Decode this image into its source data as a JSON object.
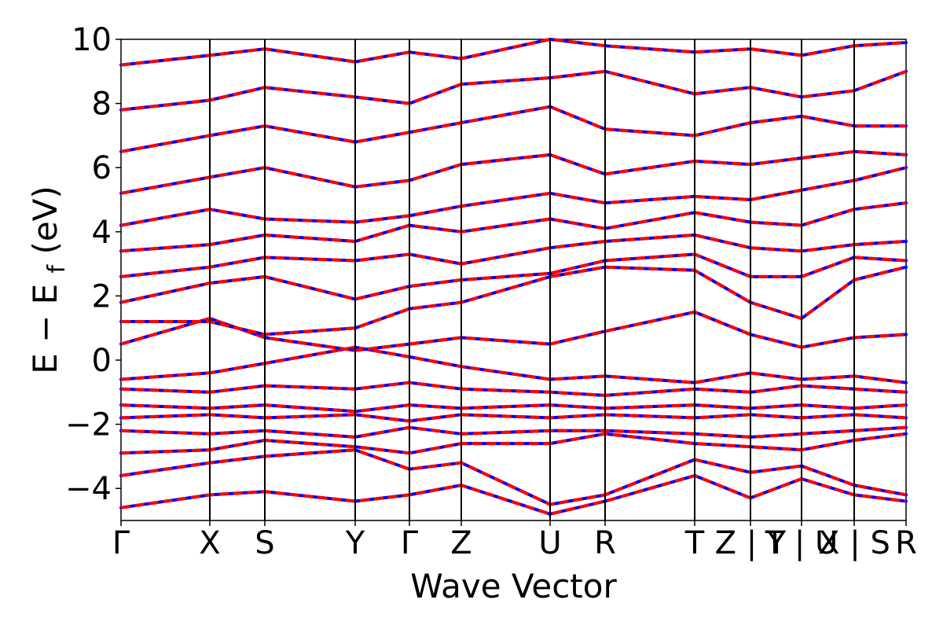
{
  "chart_data": {
    "type": "line",
    "xlabel": "Wave Vector",
    "ylabel_main": "E − E",
    "ylabel_sub": "f",
    "ylabel_suffix": " (eV)",
    "ylim": [
      -5,
      10
    ],
    "yticks": [
      -4,
      -2,
      0,
      2,
      4,
      6,
      8,
      10
    ],
    "ytick_labels": [
      "−4",
      "−2",
      "0",
      "2",
      "4",
      "6",
      "8",
      "10"
    ],
    "kpath": {
      "segments": [
        [
          "Γ",
          "X"
        ],
        [
          "X",
          "S"
        ],
        [
          "S",
          "Y"
        ],
        [
          "Y",
          "Γ"
        ],
        [
          "Γ",
          "Z"
        ],
        [
          "Z",
          "U"
        ],
        [
          "U",
          "R"
        ],
        [
          "R",
          "T"
        ],
        [
          "T",
          "Z"
        ],
        [
          "Y",
          "T"
        ],
        [
          "U",
          "X"
        ],
        [
          "S",
          "R"
        ]
      ],
      "labels": [
        "Γ",
        "X",
        "S",
        "Y",
        "Γ",
        "Z",
        "U",
        "R",
        "T",
        "Z | Y",
        "T | U",
        "X | S",
        "R"
      ]
    },
    "series": [
      {
        "color": "#0000ff",
        "style": "solid",
        "bands": [
          {
            "x": [
              0,
              1,
              2,
              3,
              4,
              5,
              6,
              7,
              8,
              9,
              10,
              11,
              12
            ],
            "y": [
              -4.6,
              -4.2,
              -4.1,
              -4.4,
              -4.2,
              -3.9,
              -4.8,
              -4.4,
              -3.6,
              -4.3,
              -3.7,
              -4.2,
              -4.4
            ]
          },
          {
            "x": [
              0,
              1,
              2,
              3,
              4,
              5,
              6,
              7,
              8,
              9,
              10,
              11,
              12
            ],
            "y": [
              -3.6,
              -3.2,
              -3.0,
              -2.8,
              -3.4,
              -3.2,
              -4.5,
              -4.2,
              -3.1,
              -3.5,
              -3.3,
              -3.9,
              -4.2
            ]
          },
          {
            "x": [
              0,
              1,
              2,
              3,
              4,
              5,
              6,
              7,
              8,
              9,
              10,
              11,
              12
            ],
            "y": [
              -2.9,
              -2.8,
              -2.5,
              -2.7,
              -2.9,
              -2.6,
              -2.6,
              -2.3,
              -2.6,
              -2.7,
              -2.8,
              -2.5,
              -2.3
            ]
          },
          {
            "x": [
              0,
              1,
              2,
              3,
              4,
              5,
              6,
              7,
              8,
              9,
              10,
              11,
              12
            ],
            "y": [
              -2.2,
              -2.3,
              -2.2,
              -2.4,
              -2.1,
              -2.3,
              -2.2,
              -2.2,
              -2.3,
              -2.4,
              -2.3,
              -2.2,
              -2.1
            ]
          },
          {
            "x": [
              0,
              1,
              2,
              3,
              4,
              5,
              6,
              7,
              8,
              9,
              10,
              11,
              12
            ],
            "y": [
              -1.8,
              -1.7,
              -1.8,
              -1.7,
              -1.9,
              -1.7,
              -1.8,
              -1.7,
              -1.8,
              -1.7,
              -1.8,
              -1.7,
              -1.8
            ]
          },
          {
            "x": [
              0,
              1,
              2,
              3,
              4,
              5,
              6,
              7,
              8,
              9,
              10,
              11,
              12
            ],
            "y": [
              -1.4,
              -1.5,
              -1.4,
              -1.6,
              -1.4,
              -1.5,
              -1.4,
              -1.5,
              -1.4,
              -1.5,
              -1.4,
              -1.5,
              -1.4
            ]
          },
          {
            "x": [
              0,
              1,
              2,
              3,
              4,
              5,
              6,
              7,
              8,
              9,
              10,
              11,
              12
            ],
            "y": [
              -0.9,
              -1.0,
              -0.8,
              -0.9,
              -0.7,
              -0.9,
              -1.0,
              -1.1,
              -0.9,
              -1.0,
              -0.8,
              -0.9,
              -1.0
            ]
          },
          {
            "x": [
              0,
              1,
              2,
              3,
              4,
              5,
              6,
              7,
              8,
              9,
              10,
              11,
              12
            ],
            "y": [
              -0.6,
              -0.4,
              -0.1,
              0.4,
              0.1,
              -0.2,
              -0.6,
              -0.5,
              -0.7,
              -0.4,
              -0.6,
              -0.5,
              -0.7
            ]
          },
          {
            "x": [
              0,
              1,
              2,
              3,
              4,
              5,
              6,
              7,
              8,
              9,
              10,
              11,
              12
            ],
            "y": [
              0.5,
              1.3,
              0.7,
              0.3,
              0.5,
              0.7,
              0.5,
              0.9,
              1.5,
              0.8,
              0.4,
              0.7,
              0.8
            ]
          },
          {
            "x": [
              0,
              1,
              2,
              3,
              4,
              5,
              6,
              7,
              8,
              9,
              10,
              11,
              12
            ],
            "y": [
              1.2,
              1.2,
              0.8,
              1.0,
              1.6,
              1.8,
              2.6,
              2.9,
              2.8,
              1.8,
              1.3,
              2.5,
              2.9
            ]
          },
          {
            "x": [
              0,
              1,
              2,
              3,
              4,
              5,
              6,
              7,
              8,
              9,
              10,
              11,
              12
            ],
            "y": [
              1.8,
              2.4,
              2.6,
              1.9,
              2.3,
              2.5,
              2.7,
              3.1,
              3.3,
              2.6,
              2.6,
              3.2,
              3.1
            ]
          },
          {
            "x": [
              0,
              1,
              2,
              3,
              4,
              5,
              6,
              7,
              8,
              9,
              10,
              11,
              12
            ],
            "y": [
              2.6,
              2.9,
              3.2,
              3.1,
              3.3,
              3.0,
              3.5,
              3.7,
              3.9,
              3.5,
              3.4,
              3.6,
              3.7
            ]
          },
          {
            "x": [
              0,
              1,
              2,
              3,
              4,
              5,
              6,
              7,
              8,
              9,
              10,
              11,
              12
            ],
            "y": [
              3.4,
              3.6,
              3.9,
              3.7,
              4.2,
              4.0,
              4.4,
              4.1,
              4.6,
              4.3,
              4.2,
              4.7,
              4.9
            ]
          },
          {
            "x": [
              0,
              1,
              2,
              3,
              4,
              5,
              6,
              7,
              8,
              9,
              10,
              11,
              12
            ],
            "y": [
              4.2,
              4.7,
              4.4,
              4.3,
              4.5,
              4.8,
              5.2,
              4.9,
              5.1,
              5.0,
              5.3,
              5.6,
              6.0
            ]
          },
          {
            "x": [
              0,
              1,
              2,
              3,
              4,
              5,
              6,
              7,
              8,
              9,
              10,
              11,
              12
            ],
            "y": [
              5.2,
              5.7,
              6.0,
              5.4,
              5.6,
              6.1,
              6.4,
              5.8,
              6.2,
              6.1,
              6.3,
              6.5,
              6.4
            ]
          },
          {
            "x": [
              0,
              1,
              2,
              3,
              4,
              5,
              6,
              7,
              8,
              9,
              10,
              11,
              12
            ],
            "y": [
              6.5,
              7.0,
              7.3,
              6.8,
              7.1,
              7.4,
              7.9,
              7.2,
              7.0,
              7.4,
              7.6,
              7.3,
              7.3
            ]
          },
          {
            "x": [
              0,
              1,
              2,
              3,
              4,
              5,
              6,
              7,
              8,
              9,
              10,
              11,
              12
            ],
            "y": [
              7.8,
              8.1,
              8.5,
              8.2,
              8.0,
              8.6,
              8.8,
              9.0,
              8.3,
              8.5,
              8.2,
              8.4,
              9.0
            ]
          },
          {
            "x": [
              0,
              1,
              2,
              3,
              4,
              5,
              6,
              7,
              8,
              9,
              10,
              11,
              12
            ],
            "y": [
              9.2,
              9.5,
              9.7,
              9.3,
              9.6,
              9.4,
              10.0,
              9.8,
              9.6,
              9.7,
              9.5,
              9.8,
              9.9
            ]
          }
        ]
      },
      {
        "color": "#ff0000",
        "style": "dashed",
        "bands": "same_as_series_0"
      }
    ]
  }
}
